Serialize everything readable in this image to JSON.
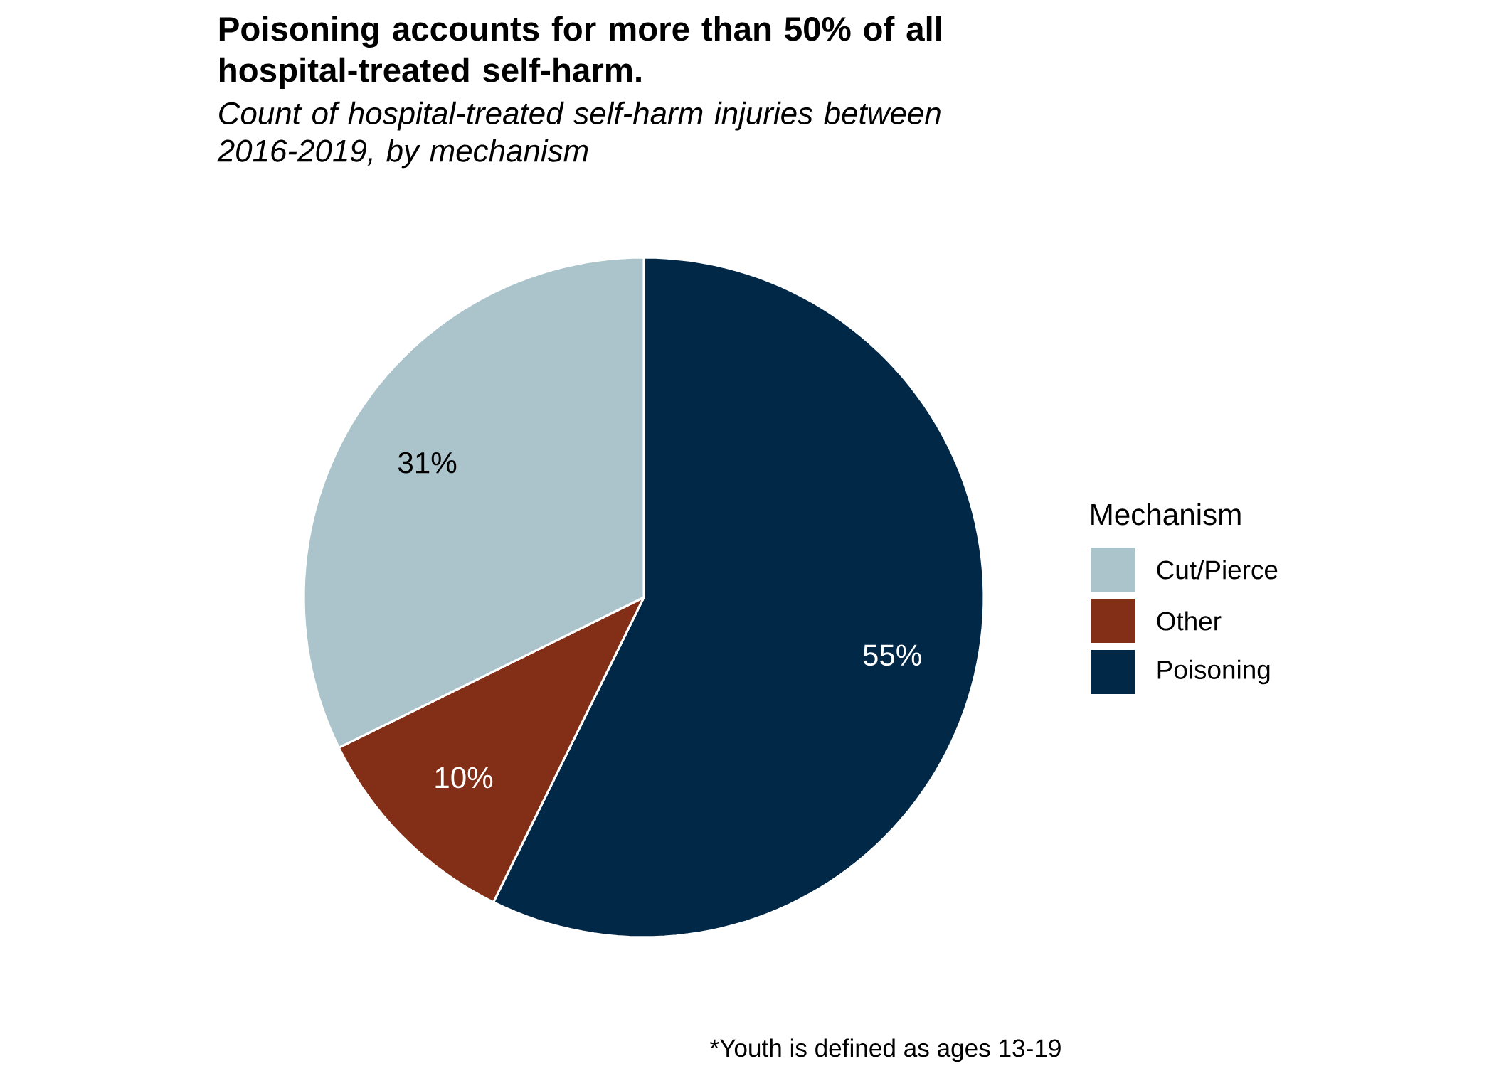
{
  "chart_data": {
    "type": "pie",
    "title": "Poisoning accounts for more than 50% of all hospital-treated self-harm.",
    "subtitle": "Count of hospital-treated self-harm injuries between 2016-2019, by mechanism",
    "legend_title": "Mechanism",
    "categories": [
      "Cut/Pierce",
      "Other",
      "Poisoning"
    ],
    "values": [
      31,
      10,
      55
    ],
    "colors": [
      "#abc4cb",
      "#832f17",
      "#022848"
    ],
    "value_labels": [
      "31%",
      "10%",
      "55%"
    ],
    "legend": "right",
    "annotations": [
      "*Youth is defined as ages 13-19"
    ]
  }
}
